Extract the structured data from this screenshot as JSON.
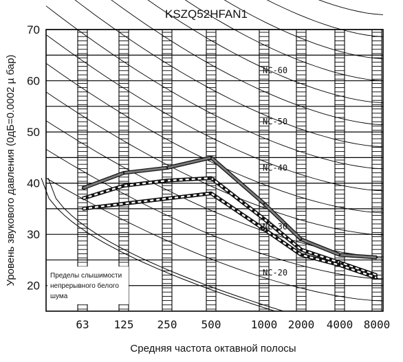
{
  "chart_data": {
    "type": "line",
    "title": "KSZQ52HFAN1",
    "xlabel": "Средняя частота октавной полосы",
    "ylabel": "Уровень звукового давления (0дБ=0.0002 µ бар)",
    "categories": [
      "63",
      "125",
      "250",
      "500",
      "1000",
      "2000",
      "4000",
      "8000"
    ],
    "y_ticks": [
      "20",
      "30",
      "40",
      "50",
      "60",
      "70"
    ],
    "ylim": [
      15,
      70
    ],
    "grid": true,
    "series": [
      {
        "values": [
          39,
          42,
          43,
          45,
          36,
          29,
          26,
          25.5
        ]
      },
      {
        "values": [
          37,
          39.5,
          40.5,
          41,
          33,
          27,
          24.5,
          22
        ]
      },
      {
        "values": [
          35,
          36,
          37,
          38,
          31,
          26,
          24,
          21.5
        ]
      }
    ],
    "nc_labels": [
      {
        "text": "NC-60",
        "value": 62
      },
      {
        "text": "NC-50",
        "value": 52
      },
      {
        "text": "NC-40",
        "value": 43
      },
      {
        "text": "NC-30",
        "value": 31.5
      },
      {
        "text": "NC-20",
        "value": 22.5
      }
    ],
    "annotation_lines": [
      "Пределы слышимости",
      "непрерывного белого",
      "шума"
    ]
  }
}
